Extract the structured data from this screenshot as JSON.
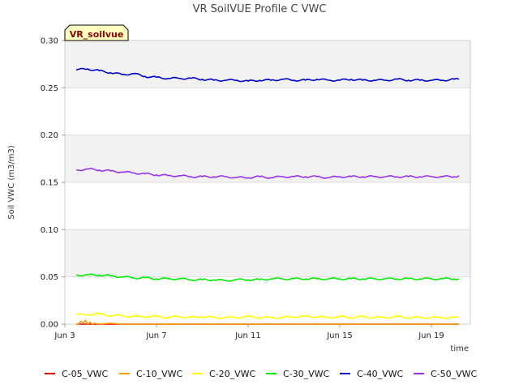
{
  "chart_data": {
    "type": "line",
    "title": "VR SoilVUE Profile C VWC",
    "xlabel": "time",
    "ylabel": "Soil VWC (m3/m3)",
    "badge": "VR_soilvue",
    "ylim": [
      0.0,
      0.3
    ],
    "xlim": [
      3.0,
      20.7
    ],
    "x_ticks": [
      {
        "value": 3,
        "label": "Jun 3"
      },
      {
        "value": 7,
        "label": "Jun 7"
      },
      {
        "value": 11,
        "label": "Jun 11"
      },
      {
        "value": 15,
        "label": "Jun 15"
      },
      {
        "value": 19,
        "label": "Jun 19"
      }
    ],
    "y_ticks": [
      {
        "value": 0.0,
        "label": "0.00"
      },
      {
        "value": 0.05,
        "label": "0.05"
      },
      {
        "value": 0.1,
        "label": "0.10"
      },
      {
        "value": 0.15,
        "label": "0.15"
      },
      {
        "value": 0.2,
        "label": "0.20"
      },
      {
        "value": 0.25,
        "label": "0.25"
      },
      {
        "value": 0.3,
        "label": "0.30"
      }
    ],
    "grid": true,
    "legend_position": "bottom",
    "series": [
      {
        "name": "C-05_VWC",
        "color": "#dd0000",
        "x": [
          3.5,
          20.2
        ],
        "values": [
          0.0,
          0.0
        ]
      },
      {
        "name": "C-10_VWC",
        "color": "#ff9900",
        "x": [
          3.5,
          3.6,
          3.7,
          3.8,
          3.9,
          4.0,
          4.1,
          4.2,
          4.3,
          4.5,
          5.0,
          5.5,
          6.0,
          10.0,
          15.0,
          20.2
        ],
        "values": [
          0.0,
          0.0,
          0.003,
          0.001,
          0.004,
          0.0,
          0.002,
          0.0,
          0.001,
          0.0,
          0.001,
          0.0,
          0.0,
          0.0,
          0.0,
          0.0
        ]
      },
      {
        "name": "C-20_VWC",
        "color": "#ffff00",
        "x": [
          3.5,
          4.0,
          4.5,
          5.0,
          5.5,
          6.0,
          6.5,
          7.0,
          7.5,
          8.0,
          8.5,
          9.0,
          9.5,
          10.0,
          10.5,
          11.0,
          11.5,
          12.0,
          12.5,
          13.0,
          13.5,
          14.0,
          14.5,
          15.0,
          15.5,
          16.0,
          16.5,
          17.0,
          17.5,
          18.0,
          18.5,
          19.0,
          19.5,
          20.0,
          20.2
        ],
        "values": [
          0.01,
          0.01,
          0.011,
          0.009,
          0.009,
          0.008,
          0.008,
          0.008,
          0.007,
          0.008,
          0.007,
          0.008,
          0.007,
          0.007,
          0.007,
          0.008,
          0.007,
          0.007,
          0.007,
          0.008,
          0.008,
          0.008,
          0.007,
          0.008,
          0.007,
          0.008,
          0.007,
          0.007,
          0.008,
          0.007,
          0.007,
          0.007,
          0.007,
          0.007,
          0.007
        ]
      },
      {
        "name": "C-30_VWC",
        "color": "#00ee00",
        "x": [
          3.5,
          4.0,
          4.5,
          5.0,
          5.5,
          6.0,
          6.5,
          7.0,
          7.5,
          8.0,
          8.5,
          9.0,
          9.5,
          10.0,
          10.5,
          11.0,
          11.5,
          12.0,
          12.5,
          13.0,
          13.5,
          14.0,
          14.5,
          15.0,
          15.5,
          16.0,
          16.5,
          17.0,
          17.5,
          18.0,
          18.5,
          19.0,
          19.5,
          20.0,
          20.2
        ],
        "values": [
          0.052,
          0.052,
          0.052,
          0.051,
          0.05,
          0.049,
          0.049,
          0.048,
          0.048,
          0.048,
          0.047,
          0.047,
          0.047,
          0.046,
          0.047,
          0.047,
          0.047,
          0.048,
          0.048,
          0.048,
          0.048,
          0.048,
          0.048,
          0.048,
          0.048,
          0.048,
          0.048,
          0.048,
          0.048,
          0.048,
          0.048,
          0.048,
          0.048,
          0.048,
          0.048
        ]
      },
      {
        "name": "C-40_VWC",
        "color": "#0000cc",
        "x": [
          3.5,
          4.0,
          4.5,
          5.0,
          5.5,
          6.0,
          6.5,
          7.0,
          7.5,
          8.0,
          8.5,
          9.0,
          9.5,
          10.0,
          10.5,
          11.0,
          11.5,
          12.0,
          12.5,
          13.0,
          13.5,
          14.0,
          14.5,
          15.0,
          15.5,
          16.0,
          16.5,
          17.0,
          17.5,
          18.0,
          18.5,
          19.0,
          19.5,
          20.0,
          20.2
        ],
        "values": [
          0.269,
          0.27,
          0.268,
          0.266,
          0.264,
          0.265,
          0.262,
          0.261,
          0.26,
          0.26,
          0.26,
          0.259,
          0.258,
          0.258,
          0.258,
          0.257,
          0.258,
          0.258,
          0.259,
          0.258,
          0.258,
          0.259,
          0.258,
          0.258,
          0.259,
          0.258,
          0.258,
          0.258,
          0.259,
          0.258,
          0.258,
          0.258,
          0.258,
          0.259,
          0.259
        ]
      },
      {
        "name": "C-50_VWC",
        "color": "#9933ee",
        "x": [
          3.5,
          4.0,
          4.5,
          5.0,
          5.5,
          6.0,
          6.5,
          7.0,
          7.5,
          8.0,
          8.5,
          9.0,
          9.5,
          10.0,
          10.5,
          11.0,
          11.5,
          12.0,
          12.5,
          13.0,
          13.5,
          14.0,
          14.5,
          15.0,
          15.5,
          16.0,
          16.5,
          17.0,
          17.5,
          18.0,
          18.5,
          19.0,
          19.5,
          20.0,
          20.2
        ],
        "values": [
          0.163,
          0.164,
          0.163,
          0.162,
          0.161,
          0.16,
          0.159,
          0.158,
          0.157,
          0.157,
          0.156,
          0.156,
          0.156,
          0.156,
          0.155,
          0.155,
          0.156,
          0.155,
          0.156,
          0.156,
          0.156,
          0.156,
          0.155,
          0.156,
          0.156,
          0.156,
          0.156,
          0.156,
          0.156,
          0.156,
          0.156,
          0.156,
          0.156,
          0.156,
          0.157
        ]
      }
    ]
  }
}
